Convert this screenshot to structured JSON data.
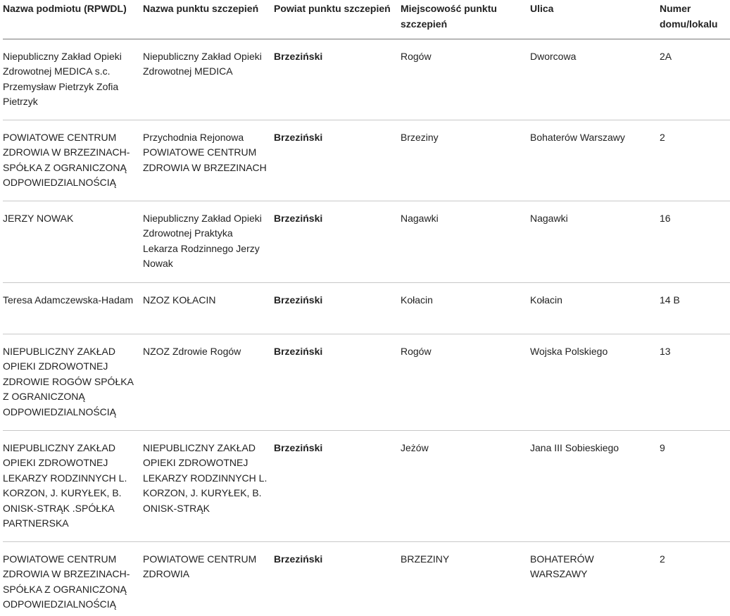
{
  "headers": [
    "Nazwa podmiotu (RPWDL)",
    "Nazwa punktu szczepień",
    "Powiat punktu szczepień",
    "Miejscowość punktu szczepień",
    "Ulica",
    "Numer domu/lokalu"
  ],
  "rows": [
    [
      "Niepubliczny Zakład Opieki Zdrowotnej MEDICA s.c. Przemysław Pietrzyk Zofia Pietrzyk",
      "Niepubliczny Zakład Opieki Zdrowotnej MEDICA",
      "Brzeziński",
      "Rogów",
      "Dworcowa",
      "2A"
    ],
    [
      "POWIATOWE CENTRUM ZDROWIA W BRZEZINACH-SPÓŁKA Z OGRANICZONĄ ODPOWIEDZIALNOŚCIĄ",
      "Przychodnia Rejonowa POWIATOWE CENTRUM ZDROWIA W BRZEZINACH",
      "Brzeziński",
      "Brzeziny",
      "Bohaterów Warszawy",
      "2"
    ],
    [
      "JERZY NOWAK",
      "Niepubliczny Zakład Opieki Zdrowotnej Praktyka Lekarza Rodzinnego Jerzy Nowak",
      "Brzeziński",
      "Nagawki",
      "Nagawki",
      "16"
    ],
    [
      "Teresa Adamczewska-Hadam",
      "NZOZ KOŁACIN",
      "Brzeziński",
      "Kołacin",
      "Kołacin",
      "14 B"
    ],
    [
      "NIEPUBLICZNY ZAKŁAD OPIEKI ZDROWOTNEJ ZDROWIE ROGÓW SPÓŁKA Z OGRANICZONĄ ODPOWIEDZIALNOŚCIĄ",
      "NZOZ Zdrowie Rogów",
      "Brzeziński",
      "Rogów",
      "Wojska Polskiego",
      "13"
    ],
    [
      "NIEPUBLICZNY ZAKŁAD OPIEKI ZDROWOTNEJ LEKARZY RODZINNYCH L. KORZON, J. KURYŁEK, B. ONISK-STRĄK .SPÓŁKA PARTNERSKA",
      "NIEPUBLICZNY ZAKŁAD OPIEKI ZDROWOTNEJ LEKARZY RODZINNYCH L. KORZON, J. KURYŁEK, B. ONISK-STRĄK",
      "Brzeziński",
      "Jeżów",
      "Jana III Sobieskiego",
      "9"
    ],
    [
      "POWIATOWE CENTRUM ZDROWIA W BRZEZINACH-SPÓŁKA Z OGRANICZONĄ ODPOWIEDZIALNOŚCIĄ",
      "POWIATOWE CENTRUM ZDROWIA",
      "Brzeziński",
      "BRZEZINY",
      "BOHATERÓW WARSZAWY",
      "2"
    ]
  ]
}
